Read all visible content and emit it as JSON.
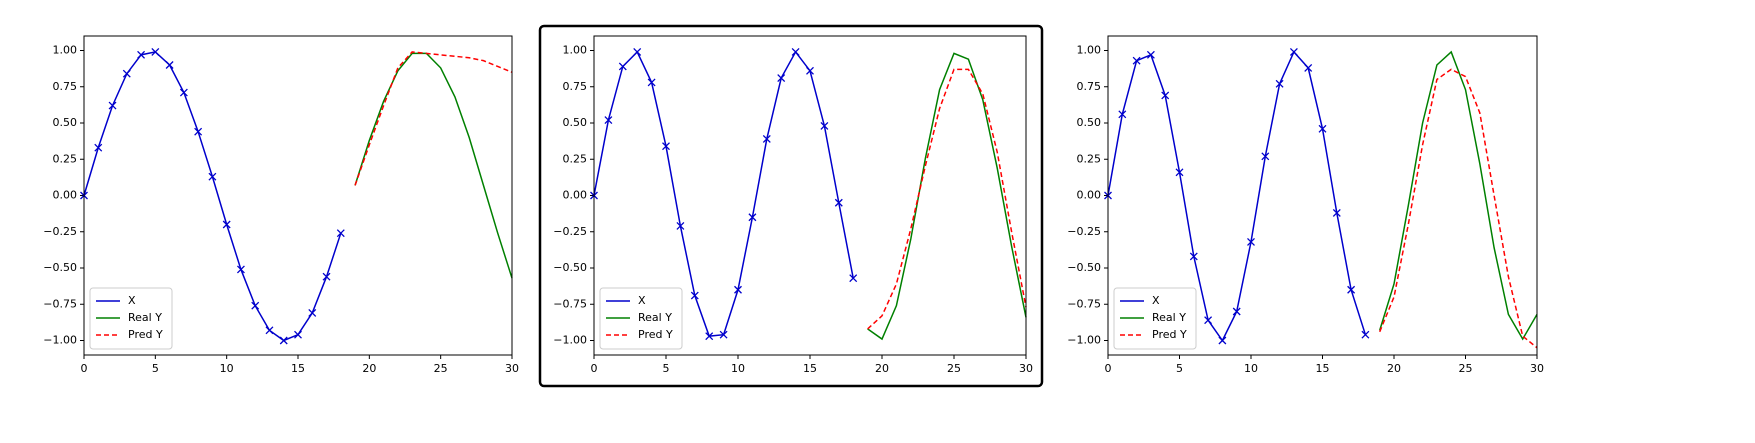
{
  "chart_data": [
    {
      "type": "line",
      "legend": "lower left",
      "selected": false,
      "x": [
        0,
        1,
        2,
        3,
        4,
        5,
        6,
        7,
        8,
        9,
        10,
        11,
        12,
        13,
        14,
        15,
        16,
        17,
        18,
        19,
        20,
        21,
        22,
        23,
        24,
        25,
        26,
        27,
        28,
        29,
        30
      ],
      "xlim": [
        0,
        30
      ],
      "xticks": [
        0,
        5,
        10,
        15,
        20,
        25,
        30
      ],
      "ylim": [
        -1.1,
        1.1
      ],
      "yticks": [
        {
          "value": -1,
          "label": "−1.00"
        },
        {
          "value": -0.75,
          "label": "−0.75"
        },
        {
          "value": -0.5,
          "label": "−0.50"
        },
        {
          "value": -0.25,
          "label": "−0.25"
        },
        {
          "value": 0,
          "label": "0.00"
        },
        {
          "value": 0.25,
          "label": "0.25"
        },
        {
          "value": 0.5,
          "label": "0.50"
        },
        {
          "value": 0.75,
          "label": "0.75"
        },
        {
          "value": 1,
          "label": "1.00"
        }
      ],
      "series": [
        {
          "name": "X",
          "color": "#0000cc",
          "marker": "x",
          "linestyle": "solid",
          "values": [
            0,
            0.33,
            0.62,
            0.84,
            0.97,
            0.99,
            0.9,
            0.71,
            0.44,
            0.13,
            -0.2,
            -0.51,
            -0.76,
            -0.93,
            -1.0,
            -0.96,
            -0.81,
            -0.56,
            -0.26,
            null,
            null,
            null,
            null,
            null,
            null,
            null,
            null,
            null,
            null,
            null,
            null
          ]
        },
        {
          "name": "Real Y",
          "color": "#008000",
          "marker": null,
          "linestyle": "solid",
          "values": [
            null,
            null,
            null,
            null,
            null,
            null,
            null,
            null,
            null,
            null,
            null,
            null,
            null,
            null,
            null,
            null,
            null,
            null,
            null,
            0.07,
            0.38,
            0.65,
            0.86,
            0.98,
            0.98,
            0.88,
            0.68,
            0.4,
            0.07,
            -0.26,
            -0.57
          ]
        },
        {
          "name": "Pred Y",
          "color": "#ff0000",
          "marker": null,
          "linestyle": "dashed",
          "values": [
            null,
            null,
            null,
            null,
            null,
            null,
            null,
            null,
            null,
            null,
            null,
            null,
            null,
            null,
            null,
            null,
            null,
            null,
            null,
            0.07,
            0.35,
            0.62,
            0.88,
            0.99,
            0.98,
            0.97,
            0.96,
            0.95,
            0.93,
            0.89,
            0.85
          ]
        }
      ]
    },
    {
      "type": "line",
      "legend": "lower left",
      "selected": true,
      "x": [
        0,
        1,
        2,
        3,
        4,
        5,
        6,
        7,
        8,
        9,
        10,
        11,
        12,
        13,
        14,
        15,
        16,
        17,
        18,
        19,
        20,
        21,
        22,
        23,
        24,
        25,
        26,
        27,
        28,
        29,
        30
      ],
      "xlim": [
        0,
        30
      ],
      "xticks": [
        0,
        5,
        10,
        15,
        20,
        25,
        30
      ],
      "ylim": [
        -1.1,
        1.1
      ],
      "yticks": [
        {
          "value": -1,
          "label": "−1.00"
        },
        {
          "value": -0.75,
          "label": "−0.75"
        },
        {
          "value": -0.5,
          "label": "−0.50"
        },
        {
          "value": -0.25,
          "label": "−0.25"
        },
        {
          "value": 0,
          "label": "0.00"
        },
        {
          "value": 0.25,
          "label": "0.25"
        },
        {
          "value": 0.5,
          "label": "0.50"
        },
        {
          "value": 0.75,
          "label": "0.75"
        },
        {
          "value": 1,
          "label": "1.00"
        }
      ],
      "series": [
        {
          "name": "X",
          "color": "#0000cc",
          "marker": "x",
          "linestyle": "solid",
          "values": [
            0,
            0.52,
            0.89,
            0.99,
            0.78,
            0.34,
            -0.21,
            -0.69,
            -0.97,
            -0.96,
            -0.65,
            -0.15,
            0.39,
            0.81,
            0.99,
            0.86,
            0.48,
            -0.05,
            -0.57,
            null,
            null,
            null,
            null,
            null,
            null,
            null,
            null,
            null,
            null,
            null,
            null
          ]
        },
        {
          "name": "Real Y",
          "color": "#008000",
          "marker": null,
          "linestyle": "solid",
          "values": [
            null,
            null,
            null,
            null,
            null,
            null,
            null,
            null,
            null,
            null,
            null,
            null,
            null,
            null,
            null,
            null,
            null,
            null,
            null,
            -0.92,
            -0.99,
            -0.76,
            -0.3,
            0.25,
            0.73,
            0.98,
            0.94,
            0.66,
            0.19,
            -0.35,
            -0.84
          ]
        },
        {
          "name": "Pred Y",
          "color": "#ff0000",
          "marker": null,
          "linestyle": "dashed",
          "values": [
            null,
            null,
            null,
            null,
            null,
            null,
            null,
            null,
            null,
            null,
            null,
            null,
            null,
            null,
            null,
            null,
            null,
            null,
            null,
            -0.92,
            -0.83,
            -0.61,
            -0.23,
            0.2,
            0.6,
            0.87,
            0.87,
            0.7,
            0.3,
            -0.25,
            -0.77
          ]
        }
      ]
    },
    {
      "type": "line",
      "legend": "lower left",
      "selected": false,
      "x": [
        0,
        1,
        2,
        3,
        4,
        5,
        6,
        7,
        8,
        9,
        10,
        11,
        12,
        13,
        14,
        15,
        16,
        17,
        18,
        19,
        20,
        21,
        22,
        23,
        24,
        25,
        26,
        27,
        28,
        29,
        30
      ],
      "xlim": [
        0,
        30
      ],
      "xticks": [
        0,
        5,
        10,
        15,
        20,
        25,
        30
      ],
      "ylim": [
        -1.1,
        1.1
      ],
      "yticks": [
        {
          "value": -1,
          "label": "−1.00"
        },
        {
          "value": -0.75,
          "label": "−0.75"
        },
        {
          "value": -0.5,
          "label": "−0.50"
        },
        {
          "value": -0.25,
          "label": "−0.25"
        },
        {
          "value": 0,
          "label": "0.00"
        },
        {
          "value": 0.25,
          "label": "0.25"
        },
        {
          "value": 0.5,
          "label": "0.50"
        },
        {
          "value": 0.75,
          "label": "0.75"
        },
        {
          "value": 1,
          "label": "1.00"
        }
      ],
      "series": [
        {
          "name": "X",
          "color": "#0000cc",
          "marker": "x",
          "linestyle": "solid",
          "values": [
            0,
            0.56,
            0.93,
            0.97,
            0.69,
            0.16,
            -0.42,
            -0.86,
            -1.0,
            -0.8,
            -0.32,
            0.27,
            0.77,
            0.99,
            0.88,
            0.46,
            -0.12,
            -0.65,
            -0.96,
            null,
            null,
            null,
            null,
            null,
            null,
            null,
            null,
            null,
            null,
            null,
            null
          ]
        },
        {
          "name": "Real Y",
          "color": "#008000",
          "marker": null,
          "linestyle": "solid",
          "values": [
            null,
            null,
            null,
            null,
            null,
            null,
            null,
            null,
            null,
            null,
            null,
            null,
            null,
            null,
            null,
            null,
            null,
            null,
            null,
            -0.93,
            -0.61,
            -0.07,
            0.5,
            0.9,
            0.99,
            0.73,
            0.22,
            -0.36,
            -0.82,
            -0.99,
            -0.82
          ]
        },
        {
          "name": "Pred Y",
          "color": "#ff0000",
          "marker": null,
          "linestyle": "dashed",
          "values": [
            null,
            null,
            null,
            null,
            null,
            null,
            null,
            null,
            null,
            null,
            null,
            null,
            null,
            null,
            null,
            null,
            null,
            null,
            null,
            -0.94,
            -0.7,
            -0.2,
            0.35,
            0.8,
            0.87,
            0.82,
            0.57,
            0.0,
            -0.56,
            -0.97,
            -1.05
          ]
        }
      ]
    }
  ]
}
